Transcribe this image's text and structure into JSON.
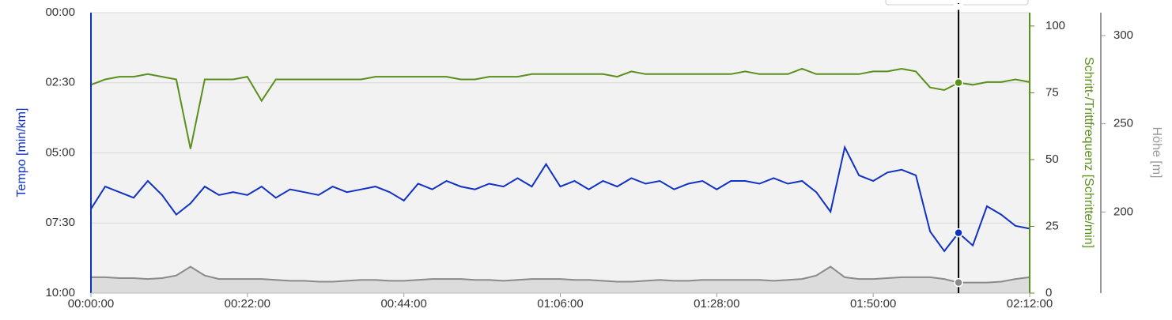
{
  "chart_data": {
    "type": "line",
    "x": [
      0,
      2,
      4,
      6,
      8,
      10,
      12,
      14,
      16,
      18,
      20,
      22,
      24,
      26,
      28,
      30,
      32,
      34,
      36,
      38,
      40,
      42,
      44,
      46,
      48,
      50,
      52,
      54,
      56,
      58,
      60,
      62,
      64,
      66,
      68,
      70,
      72,
      74,
      76,
      78,
      80,
      82,
      84,
      86,
      88,
      90,
      92,
      94,
      96,
      98,
      100,
      102,
      104,
      106,
      108,
      110,
      112,
      114,
      116,
      118,
      120,
      122,
      124,
      126,
      128,
      130,
      132
    ],
    "xlim": [
      0,
      132
    ],
    "xticks": [
      {
        "value": 0,
        "label": "00:00:00"
      },
      {
        "value": 22,
        "label": "00:22:00"
      },
      {
        "value": 44,
        "label": "00:44:00"
      },
      {
        "value": 66,
        "label": "01:06:00"
      },
      {
        "value": 88,
        "label": "01:28:00"
      },
      {
        "value": 110,
        "label": "01:50:00"
      },
      {
        "value": 132,
        "label": "02:12:00"
      }
    ],
    "ylabel": "Tempo [min/km]",
    "ylim": [
      10,
      0
    ],
    "yticks": [
      {
        "value": 0,
        "label": "00:00"
      },
      {
        "value": 2.5,
        "label": "02:30"
      },
      {
        "value": 5,
        "label": "05:00"
      },
      {
        "value": 7.5,
        "label": "07:30"
      },
      {
        "value": 10,
        "label": "10:00"
      }
    ],
    "y2label": "Schritt-/Trittfrequenz [Schritte/min]",
    "y2lim": [
      0,
      105
    ],
    "y2ticks": [
      0,
      25,
      50,
      75,
      100
    ],
    "y3label": "Höhe [m]",
    "y3lim": [
      154,
      313
    ],
    "y3ticks": [
      200,
      250,
      300
    ],
    "grid": true,
    "crosshair_x": 122,
    "series": [
      {
        "name": "Tempo",
        "color": "#0f31c4",
        "axis": "y",
        "values": [
          7.0,
          6.2,
          6.4,
          6.6,
          6.0,
          6.5,
          7.2,
          6.8,
          6.2,
          6.5,
          6.4,
          6.5,
          6.2,
          6.6,
          6.3,
          6.4,
          6.5,
          6.2,
          6.4,
          6.3,
          6.2,
          6.4,
          6.7,
          6.1,
          6.3,
          6.0,
          6.2,
          6.3,
          6.1,
          6.2,
          5.9,
          6.2,
          5.4,
          6.2,
          6.0,
          6.3,
          6.0,
          6.2,
          5.9,
          6.1,
          6.0,
          6.3,
          6.1,
          6.0,
          6.3,
          6.0,
          6.0,
          6.1,
          5.9,
          6.1,
          6.0,
          6.4,
          7.1,
          4.8,
          5.8,
          6.0,
          5.7,
          5.6,
          5.8,
          7.8,
          8.5,
          7.85,
          8.3,
          6.9,
          7.2,
          7.6,
          7.7
        ]
      },
      {
        "name": "Schritt-/Trittfrequenz",
        "color": "#5a8f1c",
        "axis": "y2",
        "values": [
          78,
          80,
          81,
          81,
          82,
          81,
          80,
          54,
          80,
          80,
          80,
          81,
          72,
          80,
          80,
          80,
          80,
          80,
          80,
          80,
          81,
          81,
          81,
          81,
          81,
          81,
          80,
          80,
          81,
          81,
          81,
          82,
          82,
          82,
          82,
          82,
          82,
          81,
          83,
          82,
          82,
          82,
          82,
          82,
          82,
          82,
          83,
          82,
          82,
          82,
          84,
          82,
          82,
          82,
          82,
          83,
          83,
          84,
          83,
          77,
          76,
          78.8,
          78,
          79,
          79,
          80,
          79
        ]
      },
      {
        "name": "Höhe",
        "color": "#8a8a8a",
        "axis": "y3",
        "values": [
          163,
          163,
          162.5,
          162.5,
          162,
          162.5,
          164,
          169,
          164,
          162,
          162,
          162,
          162,
          161.5,
          161,
          161,
          160.5,
          160.5,
          161,
          161.5,
          161.5,
          161,
          161,
          161.5,
          162,
          162,
          162,
          161.5,
          161.5,
          161,
          161.5,
          162,
          162,
          162,
          161.5,
          161.5,
          161,
          160.5,
          160.5,
          161,
          161.5,
          161,
          161,
          161.5,
          161.5,
          161.5,
          161.5,
          161.5,
          161,
          161.5,
          162,
          164,
          169,
          163,
          162,
          162,
          162.5,
          163,
          163,
          163,
          162,
          160,
          160,
          160,
          160.5,
          162,
          163
        ]
      }
    ]
  }
}
